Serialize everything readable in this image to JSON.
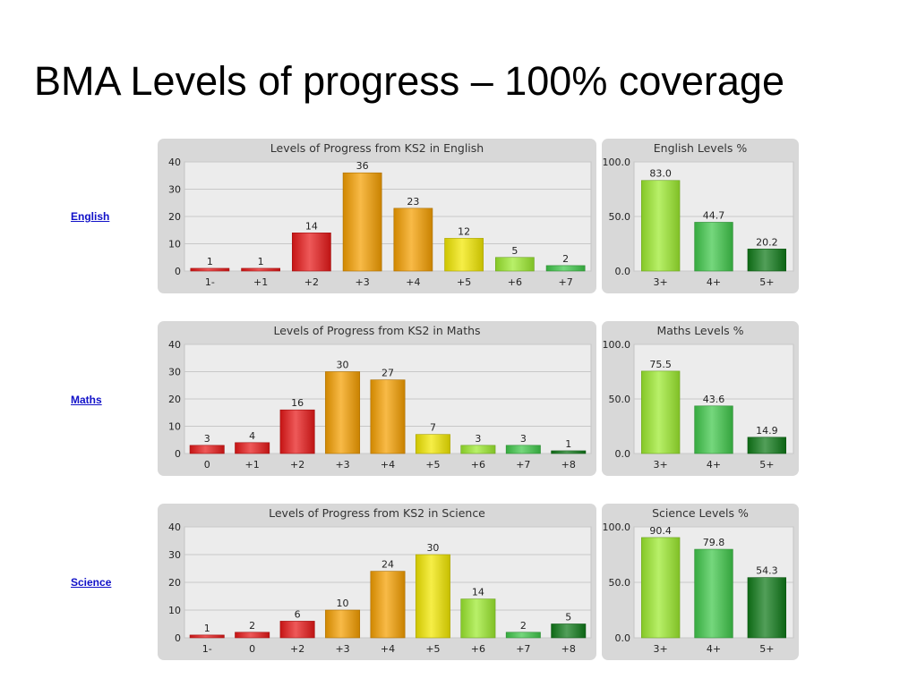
{
  "slide": {
    "title": "BMA Levels of progress – 100% coverage"
  },
  "subjects": [
    {
      "link": "English"
    },
    {
      "link": "Maths"
    },
    {
      "link": "Science"
    }
  ],
  "colors": {
    "red": "#e81818",
    "orange": "#f59f00",
    "yellow": "#f2e800",
    "light_green": "#9cea2e",
    "green": "#40c84a",
    "dark_green": "#0f7a18",
    "panel_bg": "#d8d8d8",
    "plot_bg": "#ececec"
  },
  "chart_data": [
    {
      "type": "bar",
      "title": "Levels of Progress from KS2 in English",
      "categories": [
        "1-",
        "+1",
        "+2",
        "+3",
        "+4",
        "+5",
        "+6",
        "+7"
      ],
      "values": [
        1,
        1,
        14,
        36,
        23,
        12,
        5,
        2
      ],
      "bar_colors": [
        "red",
        "red",
        "red",
        "orange",
        "orange",
        "yellow",
        "light_green",
        "green"
      ],
      "ylim": [
        0,
        40
      ],
      "yticks": [
        "0",
        "10",
        "20",
        "30",
        "40"
      ],
      "grid": true,
      "legend": "none"
    },
    {
      "type": "bar",
      "title": "English Levels %",
      "categories": [
        "3+",
        "4+",
        "5+"
      ],
      "values": [
        83.0,
        44.7,
        20.2
      ],
      "value_labels": [
        "83.0",
        "44.7",
        "20.2"
      ],
      "bar_colors": [
        "light_green",
        "green",
        "dark_green"
      ],
      "ylim": [
        0,
        100
      ],
      "yticks": [
        "0.0",
        "50.0",
        "100.0"
      ],
      "grid": true,
      "legend": "none"
    },
    {
      "type": "bar",
      "title": "Levels of Progress from KS2 in Maths",
      "categories": [
        "0",
        "+1",
        "+2",
        "+3",
        "+4",
        "+5",
        "+6",
        "+7",
        "+8"
      ],
      "values": [
        3,
        4,
        16,
        30,
        27,
        7,
        3,
        3,
        1
      ],
      "bar_colors": [
        "red",
        "red",
        "red",
        "orange",
        "orange",
        "yellow",
        "light_green",
        "green",
        "dark_green"
      ],
      "ylim": [
        0,
        40
      ],
      "yticks": [
        "0",
        "10",
        "20",
        "30",
        "40"
      ],
      "grid": true,
      "legend": "none"
    },
    {
      "type": "bar",
      "title": "Maths Levels %",
      "categories": [
        "3+",
        "4+",
        "5+"
      ],
      "values": [
        75.5,
        43.6,
        14.9
      ],
      "value_labels": [
        "75.5",
        "43.6",
        "14.9"
      ],
      "bar_colors": [
        "light_green",
        "green",
        "dark_green"
      ],
      "ylim": [
        0,
        100
      ],
      "yticks": [
        "0.0",
        "50.0",
        "100.0"
      ],
      "grid": true,
      "legend": "none"
    },
    {
      "type": "bar",
      "title": "Levels of Progress from KS2 in Science",
      "categories": [
        "1-",
        "0",
        "+2",
        "+3",
        "+4",
        "+5",
        "+6",
        "+7",
        "+8"
      ],
      "values": [
        1,
        2,
        6,
        10,
        24,
        30,
        14,
        2,
        5
      ],
      "bar_colors": [
        "red",
        "red",
        "red",
        "orange",
        "orange",
        "yellow",
        "light_green",
        "green",
        "dark_green"
      ],
      "ylim": [
        0,
        40
      ],
      "yticks": [
        "0",
        "10",
        "20",
        "30",
        "40"
      ],
      "grid": true,
      "legend": "none"
    },
    {
      "type": "bar",
      "title": "Science Levels %",
      "categories": [
        "3+",
        "4+",
        "5+"
      ],
      "values": [
        90.4,
        79.8,
        54.3
      ],
      "value_labels": [
        "90.4",
        "79.8",
        "54.3"
      ],
      "bar_colors": [
        "light_green",
        "green",
        "dark_green"
      ],
      "ylim": [
        0,
        100
      ],
      "yticks": [
        "0.0",
        "50.0",
        "100.0"
      ],
      "grid": true,
      "legend": "none"
    }
  ]
}
